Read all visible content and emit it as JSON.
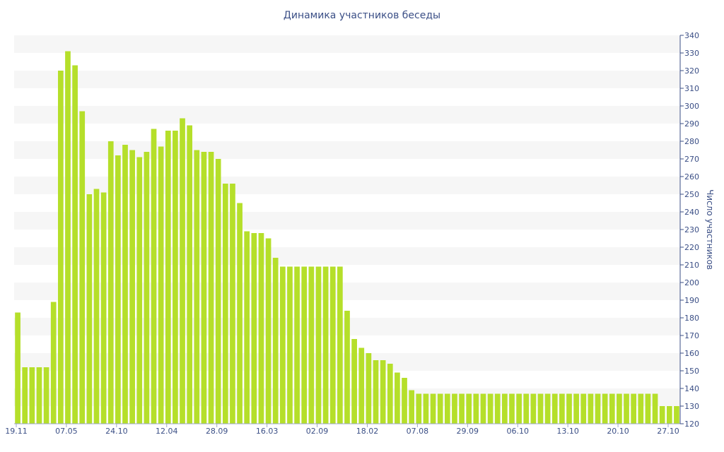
{
  "chart_data": {
    "type": "bar",
    "title": "Динамика участников беседы",
    "ylabel": "Число участников",
    "ylim": [
      120,
      340
    ],
    "yticks": [
      120,
      130,
      140,
      150,
      160,
      170,
      180,
      190,
      200,
      210,
      220,
      230,
      240,
      250,
      260,
      270,
      280,
      290,
      300,
      310,
      320,
      330,
      340
    ],
    "xtick_labels": [
      "19.11",
      "07.05",
      "24.10",
      "12.04",
      "28.09",
      "16.03",
      "02.09",
      "18.02",
      "07.08",
      "29.09",
      "06.10",
      "13.10",
      "20.10",
      "27.10"
    ],
    "values": [
      183,
      152,
      152,
      152,
      152,
      189,
      320,
      331,
      323,
      297,
      250,
      253,
      251,
      280,
      272,
      278,
      275,
      271,
      274,
      287,
      277,
      286,
      286,
      293,
      289,
      275,
      274,
      274,
      270,
      256,
      256,
      245,
      229,
      228,
      228,
      225,
      214,
      209,
      209,
      209,
      209,
      209,
      209,
      209,
      209,
      209,
      184,
      168,
      163,
      160,
      156,
      156,
      154,
      149,
      146,
      139,
      137,
      137,
      137,
      137,
      137,
      137,
      137,
      137,
      137,
      137,
      137,
      137,
      137,
      137,
      137,
      137,
      137,
      137,
      137,
      137,
      137,
      137,
      137,
      137,
      137,
      137,
      137,
      137,
      137,
      137,
      137,
      137,
      137,
      137,
      130,
      130,
      130
    ],
    "bar_color": "#b5df2a",
    "band_color": "#f6f6f6",
    "grid": "alternating horizontal bands",
    "legend": "none"
  }
}
